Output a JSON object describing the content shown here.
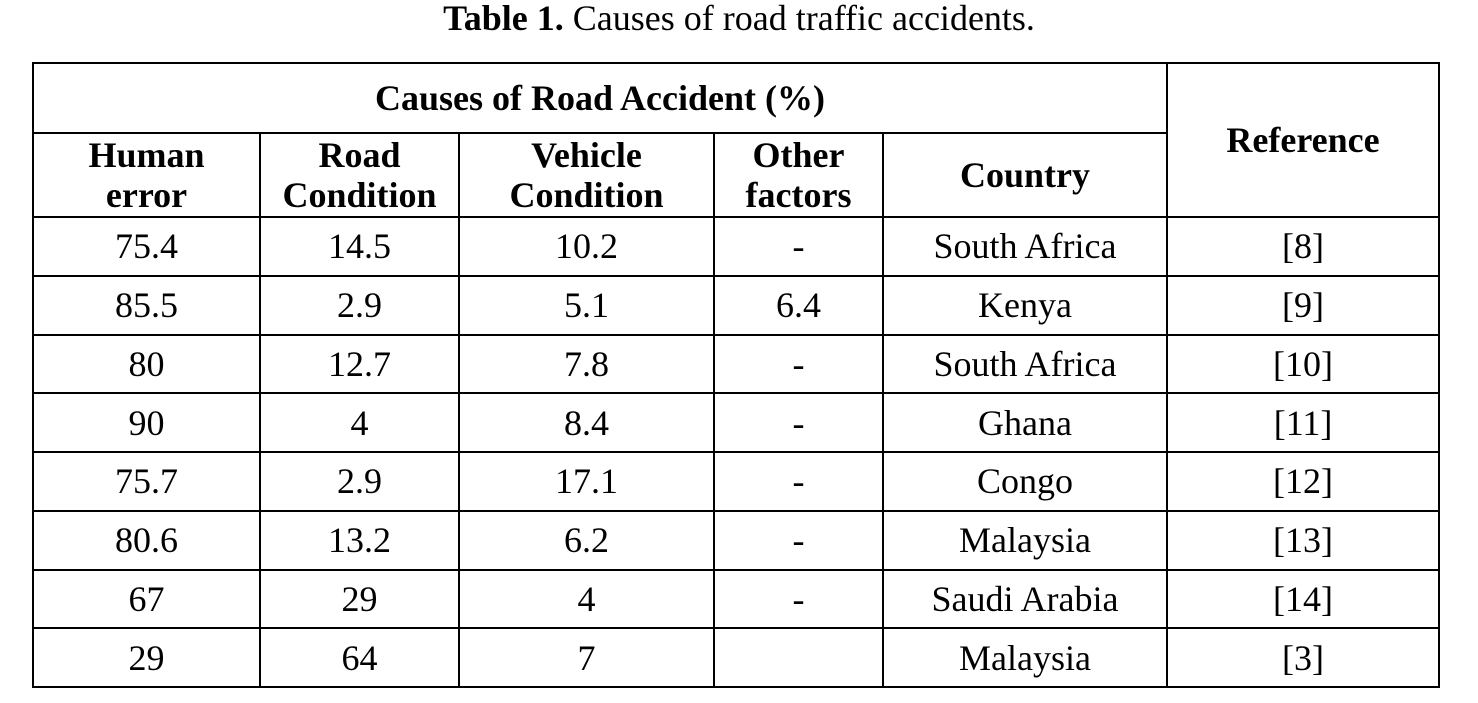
{
  "caption": {
    "label": "Table 1.",
    "text": "Causes of road traffic accidents."
  },
  "table": {
    "group_header": "Causes of Road Accident (%)",
    "reference_header": "Reference",
    "headers": [
      {
        "lines": [
          "Human",
          "error"
        ]
      },
      {
        "lines": [
          "Road",
          "Condition"
        ]
      },
      {
        "lines": [
          "Vehicle",
          "Condition"
        ]
      },
      {
        "lines": [
          "Other",
          "factors"
        ]
      },
      {
        "lines": [
          "Country"
        ]
      }
    ],
    "rows": [
      {
        "human_error": 75.4,
        "road_condition": 14.5,
        "vehicle_condition": 10.2,
        "other_factors": "-",
        "country": "South Africa",
        "reference": "[8]"
      },
      {
        "human_error": 85.5,
        "road_condition": 2.9,
        "vehicle_condition": 5.1,
        "other_factors": 6.4,
        "country": "Kenya",
        "reference": "[9]"
      },
      {
        "human_error": 80,
        "road_condition": 12.7,
        "vehicle_condition": 7.8,
        "other_factors": "-",
        "country": "South Africa",
        "reference": "[10]"
      },
      {
        "human_error": 90,
        "road_condition": 4,
        "vehicle_condition": 8.4,
        "other_factors": "-",
        "country": "Ghana",
        "reference": "[11]"
      },
      {
        "human_error": 75.7,
        "road_condition": 2.9,
        "vehicle_condition": 17.1,
        "other_factors": "-",
        "country": "Congo",
        "reference": "[12]"
      },
      {
        "human_error": 80.6,
        "road_condition": 13.2,
        "vehicle_condition": 6.2,
        "other_factors": "-",
        "country": "Malaysia",
        "reference": "[13]"
      },
      {
        "human_error": 67,
        "road_condition": 29,
        "vehicle_condition": 4,
        "other_factors": "-",
        "country": "Saudi Arabia",
        "reference": "[14]"
      },
      {
        "human_error": 29,
        "road_condition": 64,
        "vehicle_condition": 7,
        "other_factors": "",
        "country": "Malaysia",
        "reference": "[3]"
      }
    ]
  }
}
